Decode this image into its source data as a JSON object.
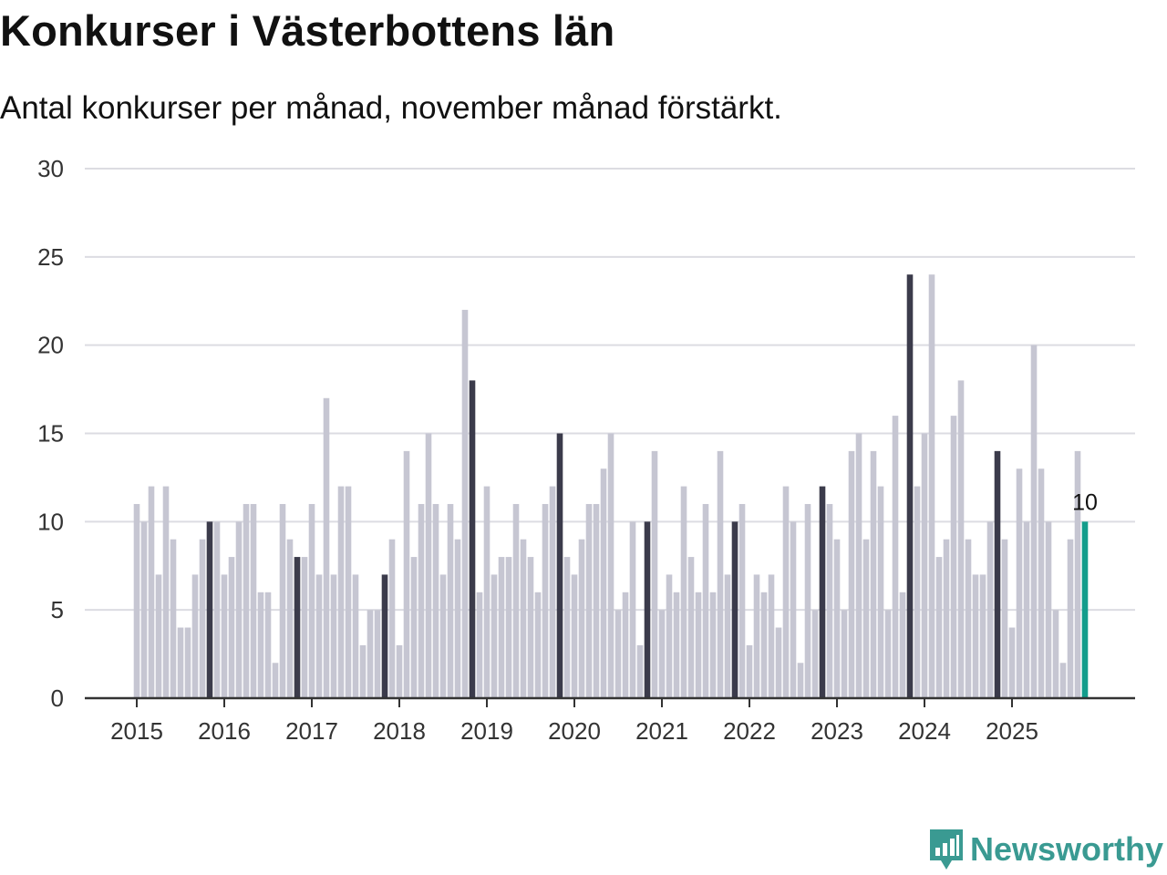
{
  "title": "Konkurser i Västerbottens län",
  "subtitle": "Antal konkurser per månad, november månad förstärkt.",
  "logo": {
    "text": "Newsworthy",
    "icon": "newsworthy-bars-icon"
  },
  "colors": {
    "bar_default": "#c6c6d2",
    "bar_november": "#3b3b4b",
    "bar_latest": "#139d8c",
    "grid": "#dcdce2",
    "axis": "#333333",
    "logo": "#3a9a92"
  },
  "chart_data": {
    "type": "bar",
    "title": "Konkurser i Västerbottens län",
    "subtitle": "Antal konkurser per månad, november månad förstärkt.",
    "xlabel": "",
    "ylabel": "",
    "ylim": [
      0,
      30
    ],
    "yticks": [
      0,
      5,
      10,
      15,
      20,
      25,
      30
    ],
    "grid": true,
    "start": {
      "year": 2015,
      "month": 1
    },
    "highlight_month": 11,
    "year_ticks": [
      "2015",
      "2016",
      "2017",
      "2018",
      "2019",
      "2020",
      "2021",
      "2022",
      "2023",
      "2024",
      "2025"
    ],
    "last_value_label": "10",
    "values": [
      11,
      10,
      12,
      7,
      12,
      9,
      4,
      4,
      7,
      9,
      10,
      10,
      7,
      8,
      10,
      11,
      11,
      6,
      6,
      2,
      11,
      9,
      8,
      8,
      11,
      7,
      17,
      7,
      12,
      12,
      7,
      3,
      5,
      5,
      7,
      9,
      3,
      14,
      8,
      11,
      15,
      11,
      7,
      11,
      9,
      22,
      18,
      6,
      12,
      7,
      8,
      8,
      11,
      9,
      8,
      6,
      11,
      12,
      15,
      8,
      7,
      9,
      11,
      11,
      13,
      15,
      5,
      6,
      10,
      3,
      10,
      14,
      5,
      7,
      6,
      12,
      8,
      6,
      11,
      6,
      14,
      7,
      10,
      11,
      3,
      7,
      6,
      7,
      4,
      12,
      10,
      2,
      11,
      5,
      12,
      11,
      9,
      5,
      14,
      15,
      9,
      14,
      12,
      5,
      16,
      6,
      24,
      12,
      15,
      24,
      8,
      9,
      16,
      18,
      9,
      7,
      7,
      10,
      14,
      9,
      4,
      13,
      10,
      20,
      13,
      10,
      5,
      2,
      9,
      14,
      10
    ]
  }
}
